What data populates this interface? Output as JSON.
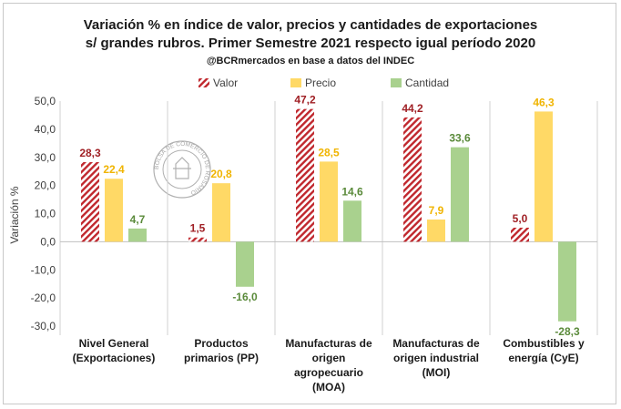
{
  "title_line1": "Variación % en índice de valor, precios y cantidades de exportaciones",
  "title_line2": "s/ grandes rubros. Primer Semestre 2021 respecto igual período 2020",
  "subtitle": "@BCRmercados en base a datos del INDEC",
  "watermark": "BOLSA DE COMERCIO DE ROSARIO",
  "colors": {
    "valor": "#c0272d",
    "precio": "#ffd966",
    "cantidad": "#a9d18e",
    "valor_label": "#a02025",
    "precio_label": "#f0b400",
    "cantidad_label": "#5a8a3a"
  },
  "chart_data": {
    "type": "bar",
    "title": "Variación % en índice de valor, precios y cantidades de exportaciones s/ grandes rubros. Primer Semestre 2021 respecto igual período 2020",
    "ylabel": "Variación %",
    "xlabel": "",
    "ylim": [
      -30,
      50
    ],
    "yticks": [
      "50,0",
      "40,0",
      "30,0",
      "20,0",
      "10,0",
      "0,0",
      "-10,0",
      "-20,0",
      "-30,0"
    ],
    "legend_position": "top",
    "grid": false,
    "categories": [
      [
        "Nivel General",
        "(Exportaciones)"
      ],
      [
        "Productos",
        "primarios (PP)"
      ],
      [
        "Manufacturas de",
        "origen",
        "agropecuario",
        "(MOA)"
      ],
      [
        "Manufacturas de",
        "origen industrial",
        "(MOI)"
      ],
      [
        "Combustibles y",
        "energía (CyE)"
      ]
    ],
    "series": [
      {
        "name": "Valor",
        "values": [
          28.3,
          1.5,
          47.2,
          44.2,
          5.0
        ],
        "labels": [
          "28,3",
          "1,5",
          "47,2",
          "44,2",
          "5,0"
        ]
      },
      {
        "name": "Precio",
        "values": [
          22.4,
          20.8,
          28.5,
          7.9,
          46.3
        ],
        "labels": [
          "22,4",
          "20,8",
          "28,5",
          "7,9",
          "46,3"
        ]
      },
      {
        "name": "Cantidad",
        "values": [
          4.7,
          -16.0,
          14.6,
          33.6,
          -28.3
        ],
        "labels": [
          "4,7",
          "-16,0",
          "14,6",
          "33,6",
          "-28,3"
        ]
      }
    ]
  }
}
